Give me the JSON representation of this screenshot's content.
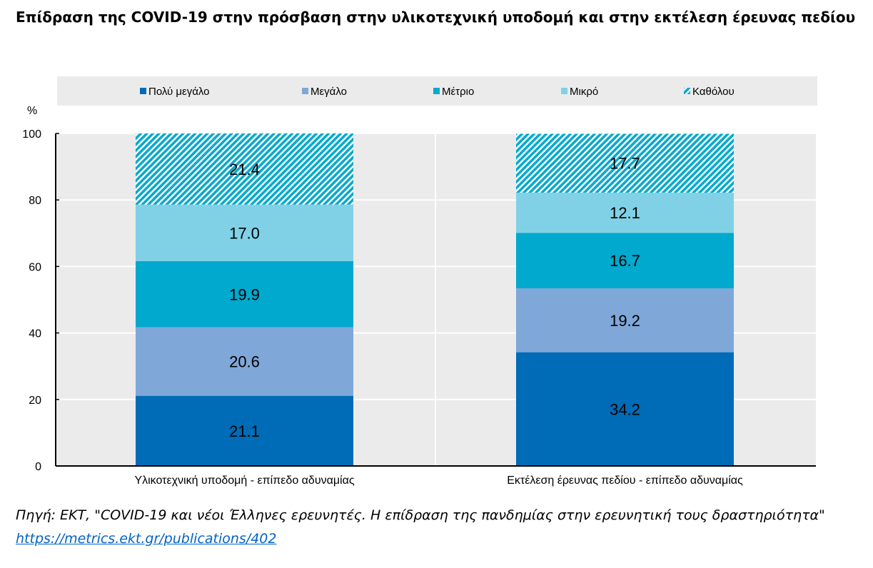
{
  "title": "Επίδραση της COVID-19 στην πρόσβαση στην υλικοτεχνική υποδομή και στην εκτέλεση έρευνας πεδίου",
  "source": {
    "text": "Πηγή: ΕΚΤ, \"COVID-19 και νέοι Έλληνες ερευνητές. Η επίδραση της πανδημίας στην ερευνητική τους δραστηριότητα\" ",
    "link": "https://metrics.ekt.gr/publications/402"
  },
  "chart_data": {
    "type": "bar",
    "stacked": true,
    "ylabel": "%",
    "ylim": [
      0,
      100
    ],
    "yticks": [
      0,
      20,
      40,
      60,
      80,
      100
    ],
    "grid": true,
    "legend_position": "top",
    "categories": [
      "Υλικοτεχνική υποδομή - επίπεδο αδυναμίας",
      "Εκτέλεση έρευνας πεδίου - επίπεδο αδυναμίας"
    ],
    "series": [
      {
        "name": "Πολύ μεγάλο",
        "color": "#006bb6",
        "values": [
          21.1,
          34.2
        ]
      },
      {
        "name": "Μεγάλο",
        "color": "#7fa7d8",
        "values": [
          20.6,
          19.2
        ]
      },
      {
        "name": "Μέτριο",
        "color": "#00a9cd",
        "values": [
          19.9,
          16.7
        ]
      },
      {
        "name": "Μικρό",
        "color": "#80d1e6",
        "values": [
          17.0,
          12.1
        ]
      },
      {
        "name": "Καθόλου",
        "color": "#00a9cd",
        "pattern": "diagonal-hatch",
        "values": [
          21.4,
          17.7
        ]
      }
    ]
  }
}
